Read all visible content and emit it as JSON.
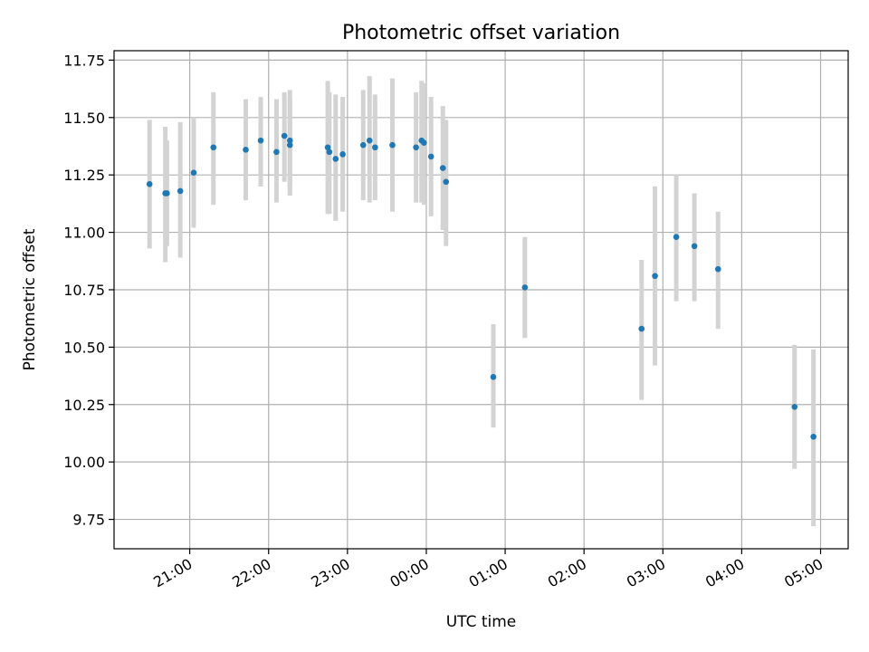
{
  "chart_data": {
    "type": "scatter",
    "title": "Photometric offset variation",
    "xlabel": "UTC time",
    "ylabel": "Photometric offset",
    "x_unit": "hours (UTC, continuous across midnight)",
    "xlim": [
      20.04,
      29.35
    ],
    "ylim": [
      9.622,
      11.791
    ],
    "xticks": [
      {
        "value": 21,
        "label": "21:00"
      },
      {
        "value": 22,
        "label": "22:00"
      },
      {
        "value": 23,
        "label": "23:00"
      },
      {
        "value": 24,
        "label": "00:00"
      },
      {
        "value": 25,
        "label": "01:00"
      },
      {
        "value": 26,
        "label": "02:00"
      },
      {
        "value": 27,
        "label": "03:00"
      },
      {
        "value": 28,
        "label": "04:00"
      },
      {
        "value": 29,
        "label": "05:00"
      }
    ],
    "yticks": [
      {
        "value": 9.75,
        "label": "9.75"
      },
      {
        "value": 10.0,
        "label": "10.00"
      },
      {
        "value": 10.25,
        "label": "10.25"
      },
      {
        "value": 10.5,
        "label": "10.50"
      },
      {
        "value": 10.75,
        "label": "10.75"
      },
      {
        "value": 11.0,
        "label": "11.00"
      },
      {
        "value": 11.25,
        "label": "11.25"
      },
      {
        "value": 11.5,
        "label": "11.50"
      },
      {
        "value": 11.75,
        "label": "11.75"
      }
    ],
    "grid": true,
    "marker_color": "#1f77b4",
    "errorbar_color": "#d3d3d3",
    "points": [
      {
        "x": 20.49,
        "y": 11.21,
        "lo": 10.93,
        "hi": 11.49
      },
      {
        "x": 20.69,
        "y": 11.17,
        "lo": 10.87,
        "hi": 11.46
      },
      {
        "x": 20.71,
        "y": 11.17,
        "lo": 10.94,
        "hi": 11.4
      },
      {
        "x": 20.88,
        "y": 11.18,
        "lo": 10.89,
        "hi": 11.48
      },
      {
        "x": 21.05,
        "y": 11.26,
        "lo": 11.02,
        "hi": 11.5
      },
      {
        "x": 21.3,
        "y": 11.37,
        "lo": 11.12,
        "hi": 11.61
      },
      {
        "x": 21.71,
        "y": 11.36,
        "lo": 11.14,
        "hi": 11.58
      },
      {
        "x": 21.9,
        "y": 11.4,
        "lo": 11.2,
        "hi": 11.59
      },
      {
        "x": 22.1,
        "y": 11.35,
        "lo": 11.13,
        "hi": 11.58
      },
      {
        "x": 22.2,
        "y": 11.42,
        "lo": 11.22,
        "hi": 11.61
      },
      {
        "x": 22.27,
        "y": 11.38,
        "lo": 11.16,
        "hi": 11.62
      },
      {
        "x": 22.27,
        "y": 11.4,
        "lo": 11.2,
        "hi": 11.58
      },
      {
        "x": 22.75,
        "y": 11.37,
        "lo": 11.08,
        "hi": 11.66
      },
      {
        "x": 22.77,
        "y": 11.35,
        "lo": 11.08,
        "hi": 11.61
      },
      {
        "x": 22.85,
        "y": 11.32,
        "lo": 11.05,
        "hi": 11.6
      },
      {
        "x": 22.94,
        "y": 11.34,
        "lo": 11.09,
        "hi": 11.59
      },
      {
        "x": 23.2,
        "y": 11.38,
        "lo": 11.14,
        "hi": 11.62
      },
      {
        "x": 23.28,
        "y": 11.4,
        "lo": 11.13,
        "hi": 11.68
      },
      {
        "x": 23.35,
        "y": 11.37,
        "lo": 11.14,
        "hi": 11.6
      },
      {
        "x": 23.57,
        "y": 11.38,
        "lo": 11.09,
        "hi": 11.67
      },
      {
        "x": 23.87,
        "y": 11.37,
        "lo": 11.13,
        "hi": 11.61
      },
      {
        "x": 23.94,
        "y": 11.4,
        "lo": 11.13,
        "hi": 11.66
      },
      {
        "x": 23.97,
        "y": 11.39,
        "lo": 11.12,
        "hi": 11.65
      },
      {
        "x": 24.06,
        "y": 11.33,
        "lo": 11.07,
        "hi": 11.59
      },
      {
        "x": 24.21,
        "y": 11.28,
        "lo": 11.01,
        "hi": 11.55
      },
      {
        "x": 24.25,
        "y": 11.22,
        "lo": 10.94,
        "hi": 11.49
      },
      {
        "x": 24.85,
        "y": 10.37,
        "lo": 10.15,
        "hi": 10.6
      },
      {
        "x": 25.25,
        "y": 10.76,
        "lo": 10.54,
        "hi": 10.98
      },
      {
        "x": 26.73,
        "y": 10.58,
        "lo": 10.27,
        "hi": 10.88
      },
      {
        "x": 26.9,
        "y": 10.81,
        "lo": 10.42,
        "hi": 11.2
      },
      {
        "x": 27.17,
        "y": 10.98,
        "lo": 10.7,
        "hi": 11.25
      },
      {
        "x": 27.4,
        "y": 10.94,
        "lo": 10.7,
        "hi": 11.17
      },
      {
        "x": 27.7,
        "y": 10.84,
        "lo": 10.58,
        "hi": 11.09
      },
      {
        "x": 28.67,
        "y": 10.24,
        "lo": 9.97,
        "hi": 10.51
      },
      {
        "x": 28.91,
        "y": 10.11,
        "lo": 9.72,
        "hi": 10.49
      }
    ]
  }
}
